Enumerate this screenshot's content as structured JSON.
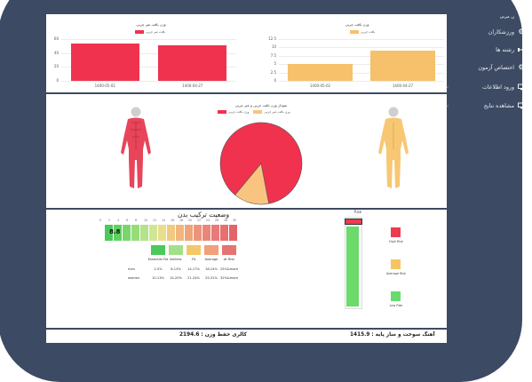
{
  "sidebar": {
    "header": "ن مربی",
    "items": [
      {
        "label": "ورزشکاران",
        "icon": "gear-icon"
      },
      {
        "label": "رشته ها",
        "icon": "dumbbell-icon"
      },
      {
        "label": "اختصاص آزمون",
        "icon": "gear-icon"
      },
      {
        "label": "ورود اطلاعات",
        "icon": "monitor-icon"
      },
      {
        "label": "مشاهده نتایج",
        "icon": "monitor-icon"
      }
    ]
  },
  "charts": {
    "left_title": "وزن بافت غیر چربی",
    "left_legend": "بافت غیر چربی",
    "right_title": "وزن بافت چربی",
    "right_legend": "بافت چربی",
    "pie_title": "نمودار وزن بافت چربی و غیر چربی",
    "pie_legend_a": "وزن بافت غیر چربی",
    "pie_legend_b": "وزن بافت چربی"
  },
  "chart_data": [
    {
      "type": "bar",
      "title": "وزن بافت غیر چربی",
      "categories": [
        "1400-05-02",
        "1400-04-27"
      ],
      "values": [
        54,
        51
      ],
      "ylim": [
        0,
        60
      ],
      "yticks": [
        "60",
        "40",
        "20",
        "0"
      ],
      "colors": [
        "#f0324f"
      ]
    },
    {
      "type": "bar",
      "title": "وزن بافت چربی",
      "categories": [
        "1400-05-02",
        "1400-04-27"
      ],
      "values": [
        5,
        9
      ],
      "ylim": [
        0,
        12.5
      ],
      "yticks": [
        "12.5",
        "10",
        "7.5",
        "5",
        "2.5",
        "0"
      ],
      "colors": [
        "#f7c06b"
      ]
    },
    {
      "type": "pie",
      "title": "نمودار وزن بافت چربی و غیر چربی",
      "series": [
        {
          "name": "وزن بافت غیر چربی",
          "value": 86,
          "color": "#f0324f"
        },
        {
          "name": "وزن بافت چربی",
          "value": 14,
          "color": "#f9c47f"
        }
      ]
    }
  ],
  "body_comp": {
    "title": "وضعیت ترکیب بدن",
    "score": "8.8",
    "scale_numbers": [
      "0",
      "2",
      "4",
      "6",
      "8",
      "10",
      "12",
      "14",
      "16",
      "18",
      "20",
      "22",
      "24",
      "26",
      "28",
      "30"
    ],
    "headers": [
      "Essential Fat",
      "Athletic",
      "Fit",
      "Average",
      "At Risk"
    ],
    "header_colors": [
      "#4cc95a",
      "#a4e08a",
      "#f5c76a",
      "#f0a07a",
      "#e57373"
    ],
    "rows": [
      {
        "label": "men",
        "values": [
          "2-5%",
          "6-13%",
          "14-17%",
          "18-24%",
          "25%&more"
        ]
      },
      {
        "label": "women",
        "values": [
          "10-13%",
          "14-20%",
          "21-24%",
          "25-31%",
          "32%&more"
        ]
      }
    ]
  },
  "risk": {
    "title": "Risk",
    "levels": [
      "High Risk",
      "Average Risk",
      "Low Risk"
    ],
    "colors": [
      "#ef3b4f",
      "#f7c463",
      "#67dc6d"
    ]
  },
  "footer": {
    "left": "کالری حفظ وزن : 2194.6",
    "right": "آهنگ سوخت و ساز پایه : 1415.9"
  }
}
